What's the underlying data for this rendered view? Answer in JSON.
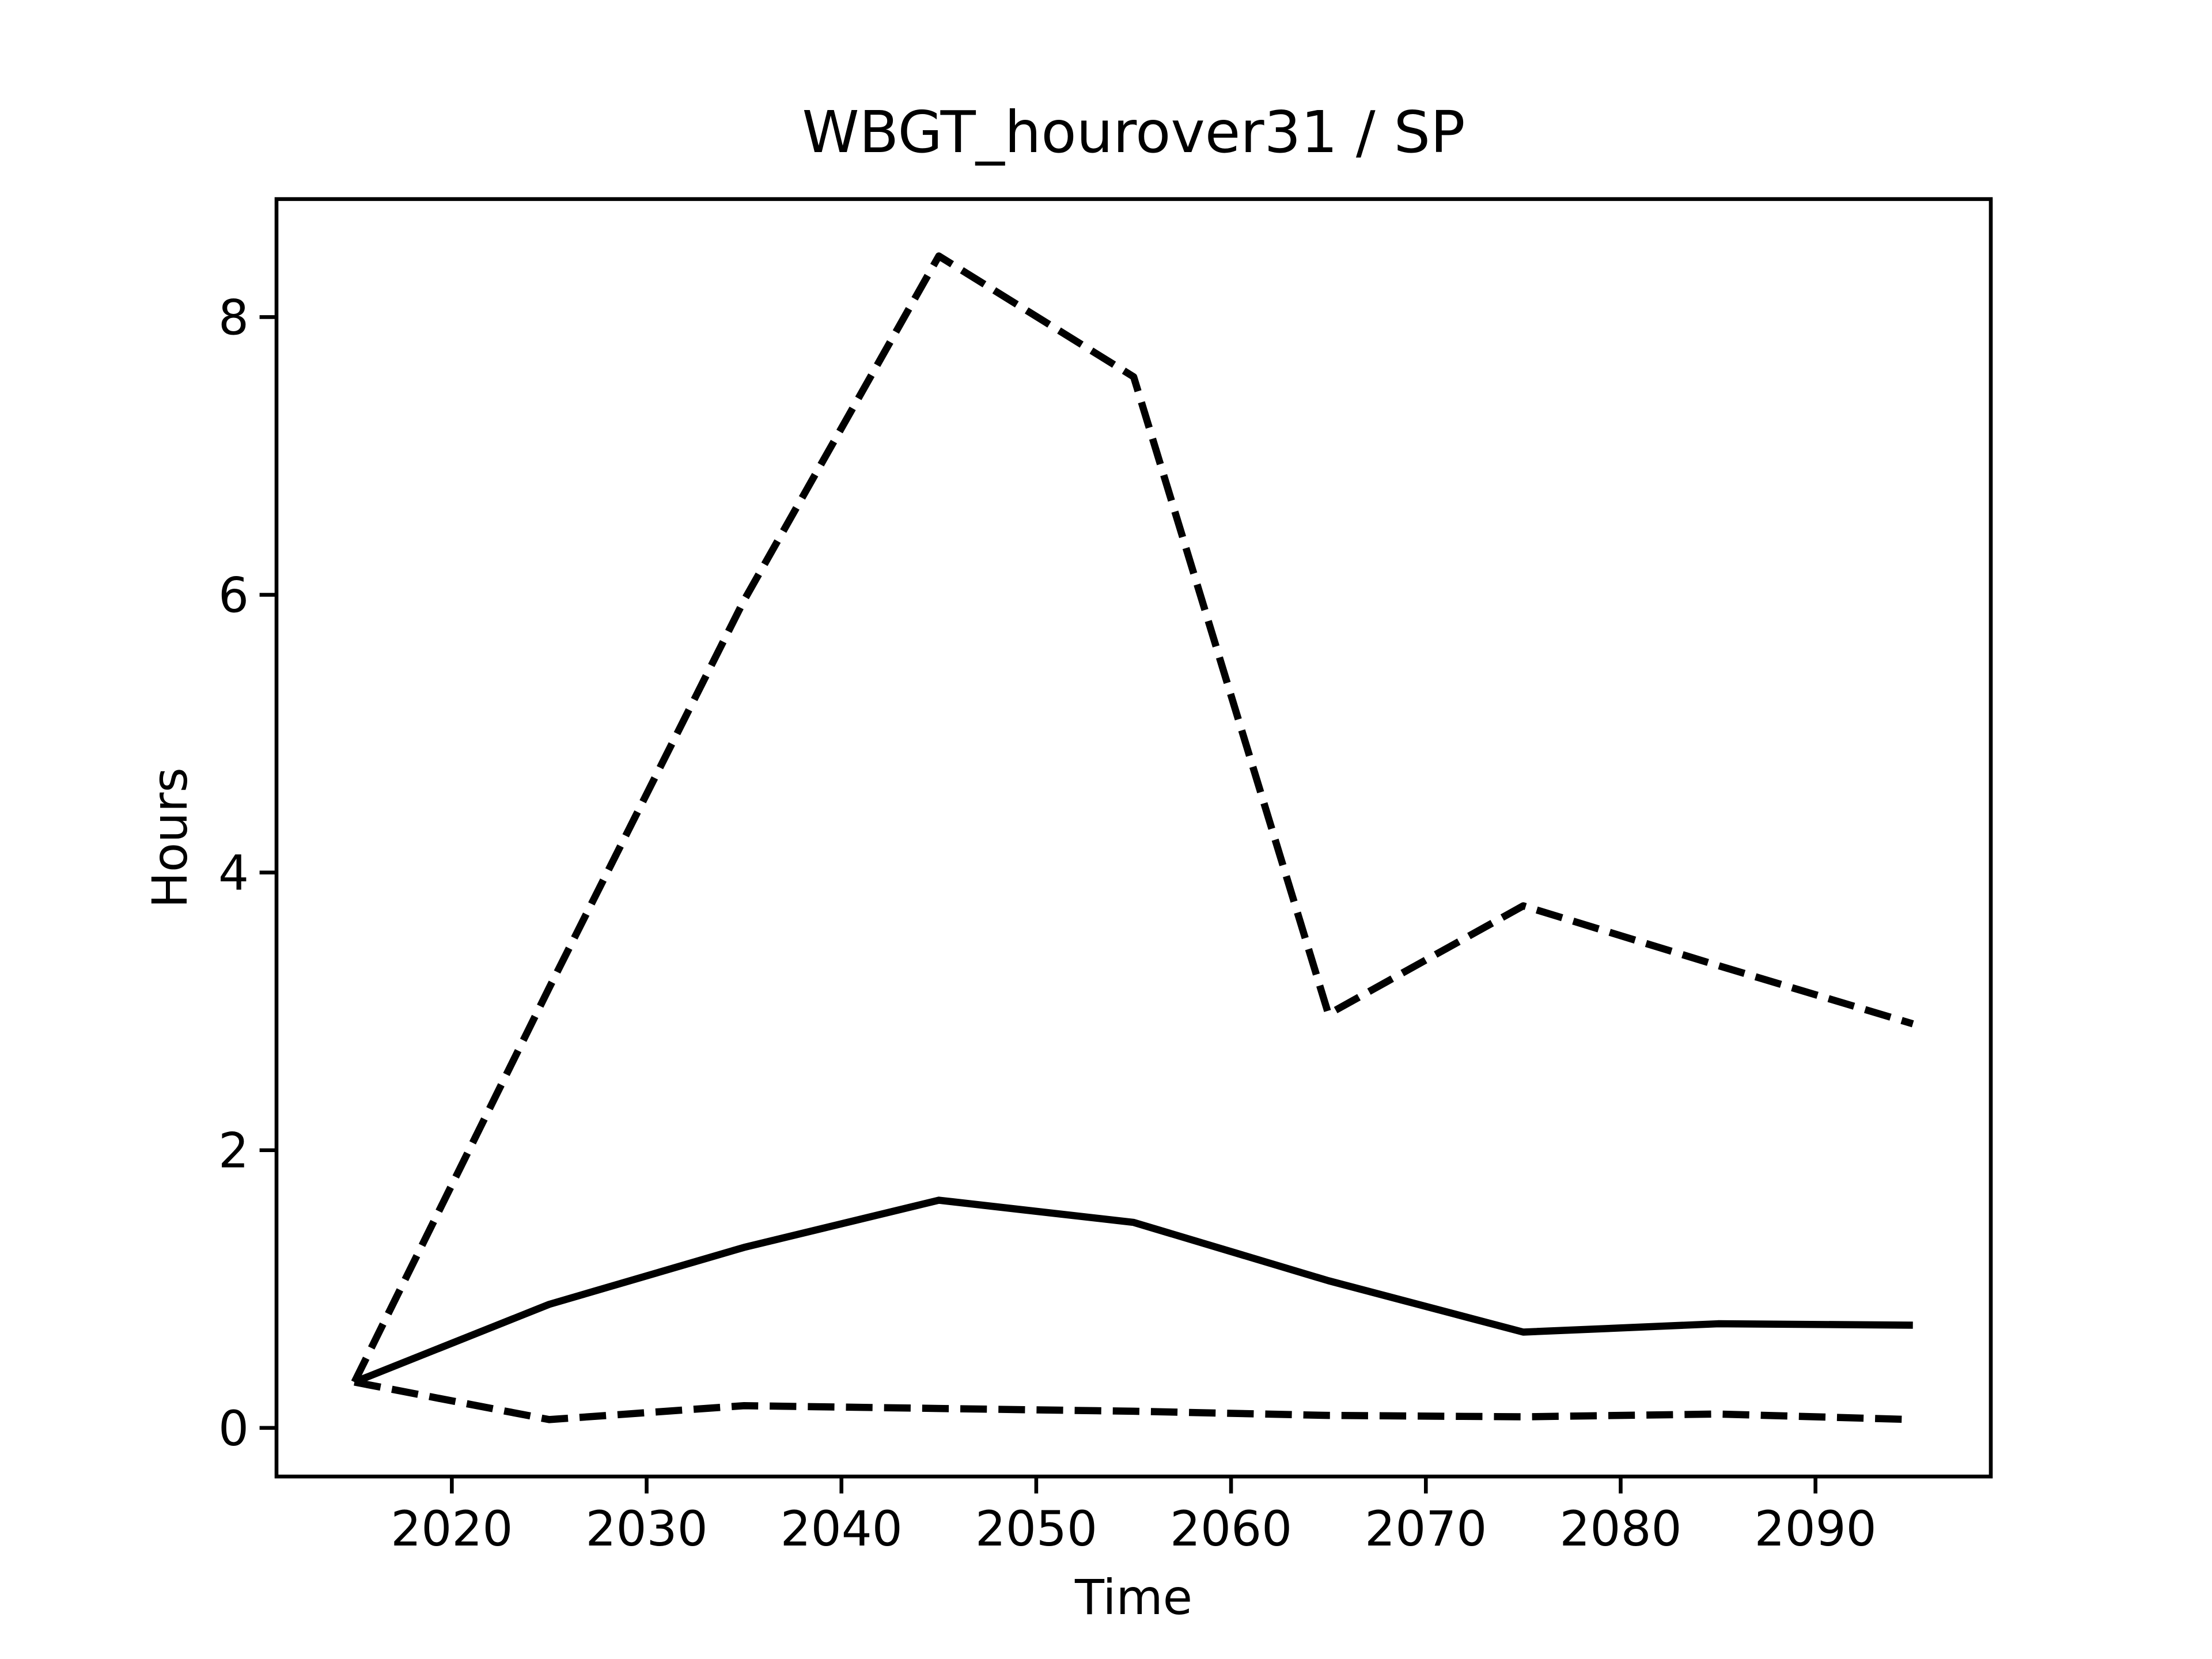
{
  "chart_data": {
    "type": "line",
    "title": "WBGT_hourover31 / SP",
    "x_label": "Time",
    "y_label": "Hours",
    "x": [
      2015,
      2025,
      2035,
      2045,
      2055,
      2065,
      2075,
      2085,
      2095
    ],
    "series": [
      {
        "color": "#000000",
        "linestyle": "dashed",
        "values": [
          0.33,
          3.17,
          5.96,
          8.44,
          7.57,
          2.98,
          3.76,
          3.33,
          2.91
        ]
      },
      {
        "color": "#000000",
        "linestyle": "solid",
        "values": [
          0.33,
          0.89,
          1.3,
          1.64,
          1.48,
          1.06,
          0.69,
          0.75,
          0.74
        ]
      },
      {
        "color": "#000000",
        "linestyle": "dashed",
        "values": [
          0.33,
          0.06,
          0.16,
          0.14,
          0.12,
          0.09,
          0.08,
          0.1,
          0.06
        ]
      }
    ],
    "xlim": [
      2011,
      2099
    ],
    "ylim": [
      -0.35,
      8.85
    ],
    "xticks": [
      2020,
      2030,
      2040,
      2050,
      2060,
      2070,
      2080,
      2090
    ],
    "yticks": [
      0,
      2,
      4,
      6,
      8
    ],
    "grid": false
  }
}
